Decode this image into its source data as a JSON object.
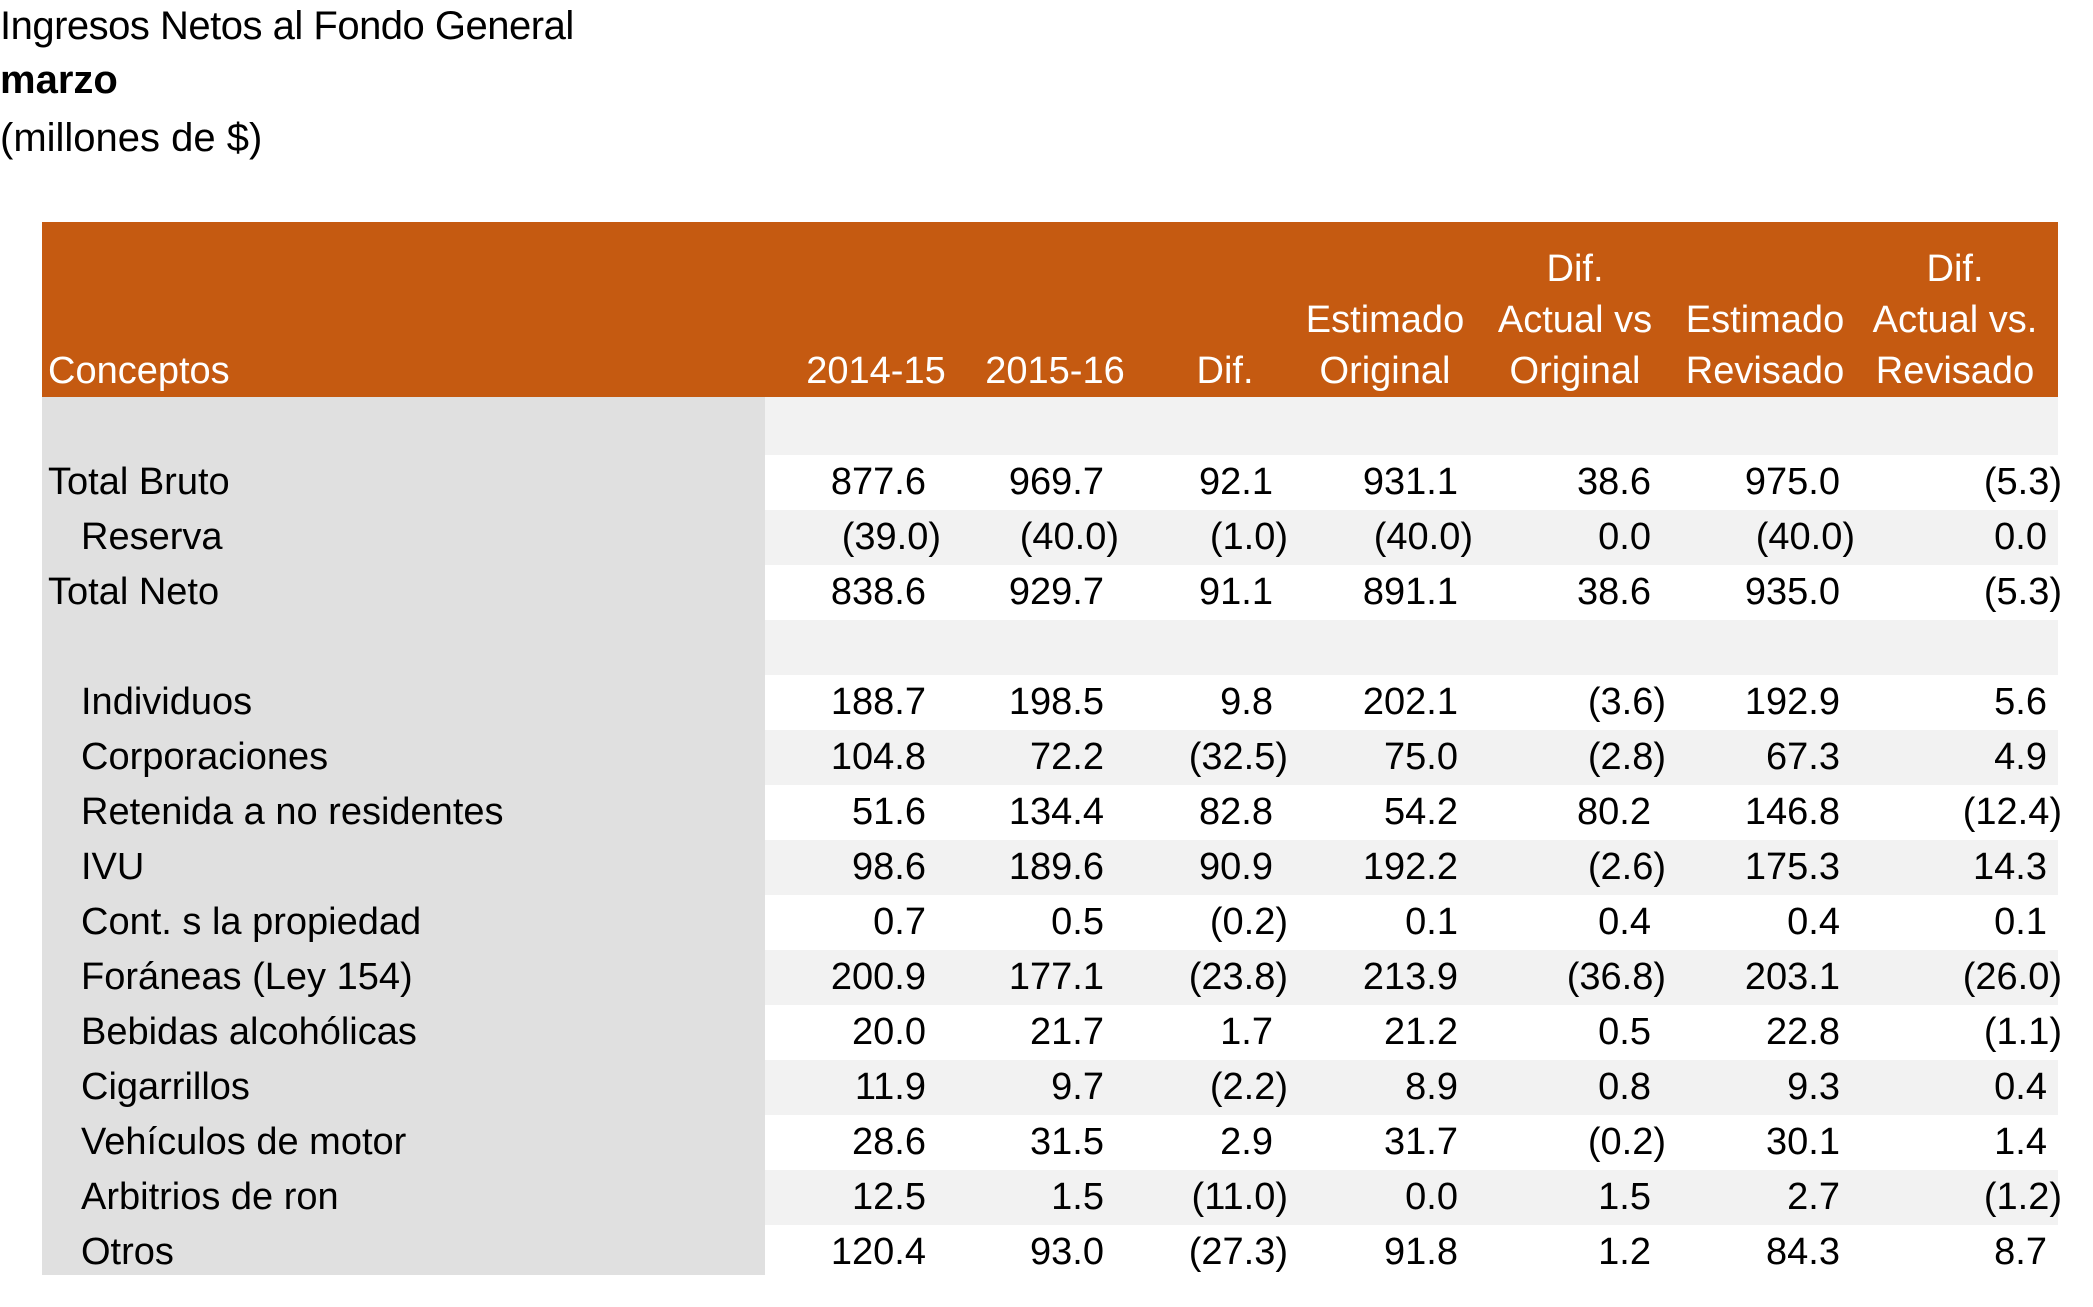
{
  "title": {
    "line1": "Ingresos Netos al Fondo General",
    "line2": "marzo",
    "line3": "(millones de $)"
  },
  "colors": {
    "header_bg": "#c55a11",
    "label_col_bg": "#e0e0e0",
    "band_bg": "#f2f2f2"
  },
  "headers": {
    "conceptos": "Conceptos",
    "c1": [
      "2014-15"
    ],
    "c2": [
      "2015-16"
    ],
    "c3": [
      "Dif."
    ],
    "c4": [
      "Estimado",
      "Original"
    ],
    "c5": [
      "Dif.",
      "Actual vs",
      "Original"
    ],
    "c6": [
      "Estimado",
      "Revisado"
    ],
    "c7": [
      "Dif.",
      "Actual vs.",
      "Revisado"
    ]
  },
  "rows": [
    {
      "label": "Total Bruto",
      "values": [
        "877.6",
        "969.7",
        "92.1",
        "931.1",
        "38.6",
        "975.0",
        "(5.3)"
      ]
    },
    {
      "label": "Reserva",
      "values": [
        "(39.0)",
        "(40.0)",
        "(1.0)",
        "(40.0)",
        "0.0",
        "(40.0)",
        "0.0"
      ]
    },
    {
      "label": "Total Neto",
      "values": [
        "838.6",
        "929.7",
        "91.1",
        "891.1",
        "38.6",
        "935.0",
        "(5.3)"
      ]
    },
    {
      "label": "Individuos",
      "values": [
        "188.7",
        "198.5",
        "9.8",
        "202.1",
        "(3.6)",
        "192.9",
        "5.6"
      ]
    },
    {
      "label": "Corporaciones",
      "values": [
        "104.8",
        "72.2",
        "(32.5)",
        "75.0",
        "(2.8)",
        "67.3",
        "4.9"
      ]
    },
    {
      "label": "Retenida a no residentes",
      "values": [
        "51.6",
        "134.4",
        "82.8",
        "54.2",
        "80.2",
        "146.8",
        "(12.4)"
      ]
    },
    {
      "label": "IVU",
      "values": [
        "98.6",
        "189.6",
        "90.9",
        "192.2",
        "(2.6)",
        "175.3",
        "14.3"
      ]
    },
    {
      "label": "Cont. s la propiedad",
      "values": [
        "0.7",
        "0.5",
        "(0.2)",
        "0.1",
        "0.4",
        "0.4",
        "0.1"
      ]
    },
    {
      "label": "Foráneas (Ley 154)",
      "values": [
        "200.9",
        "177.1",
        "(23.8)",
        "213.9",
        "(36.8)",
        "203.1",
        "(26.0)"
      ]
    },
    {
      "label": "Bebidas alcohólicas",
      "values": [
        "20.0",
        "21.7",
        "1.7",
        "21.2",
        "0.5",
        "22.8",
        "(1.1)"
      ]
    },
    {
      "label": "Cigarrillos",
      "values": [
        "11.9",
        "9.7",
        "(2.2)",
        "8.9",
        "0.8",
        "9.3",
        "0.4"
      ]
    },
    {
      "label": "Vehículos de motor",
      "values": [
        "28.6",
        "31.5",
        "2.9",
        "31.7",
        "(0.2)",
        "30.1",
        "1.4"
      ]
    },
    {
      "label": "Arbitrios de ron",
      "values": [
        "12.5",
        "1.5",
        "(11.0)",
        "0.0",
        "1.5",
        "2.7",
        "(1.2)"
      ]
    },
    {
      "label": "Otros",
      "values": [
        "120.4",
        "93.0",
        "(27.3)",
        "91.8",
        "1.2",
        "84.3",
        "8.7"
      ]
    }
  ]
}
